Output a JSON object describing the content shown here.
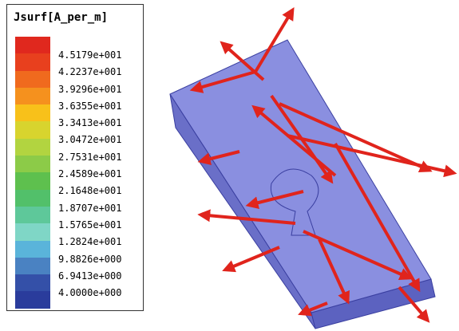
{
  "legend": {
    "title": "Jsurf[A_per_m]",
    "labels": [
      "4.5179e+001",
      "4.2237e+001",
      "3.9296e+001",
      "3.6355e+001",
      "3.3413e+001",
      "3.0472e+001",
      "2.7531e+001",
      "2.4589e+001",
      "2.1648e+001",
      "1.8707e+001",
      "1.5765e+001",
      "1.2824e+001",
      "9.8826e+000",
      "6.9413e+000",
      "4.0000e+000"
    ]
  }
}
